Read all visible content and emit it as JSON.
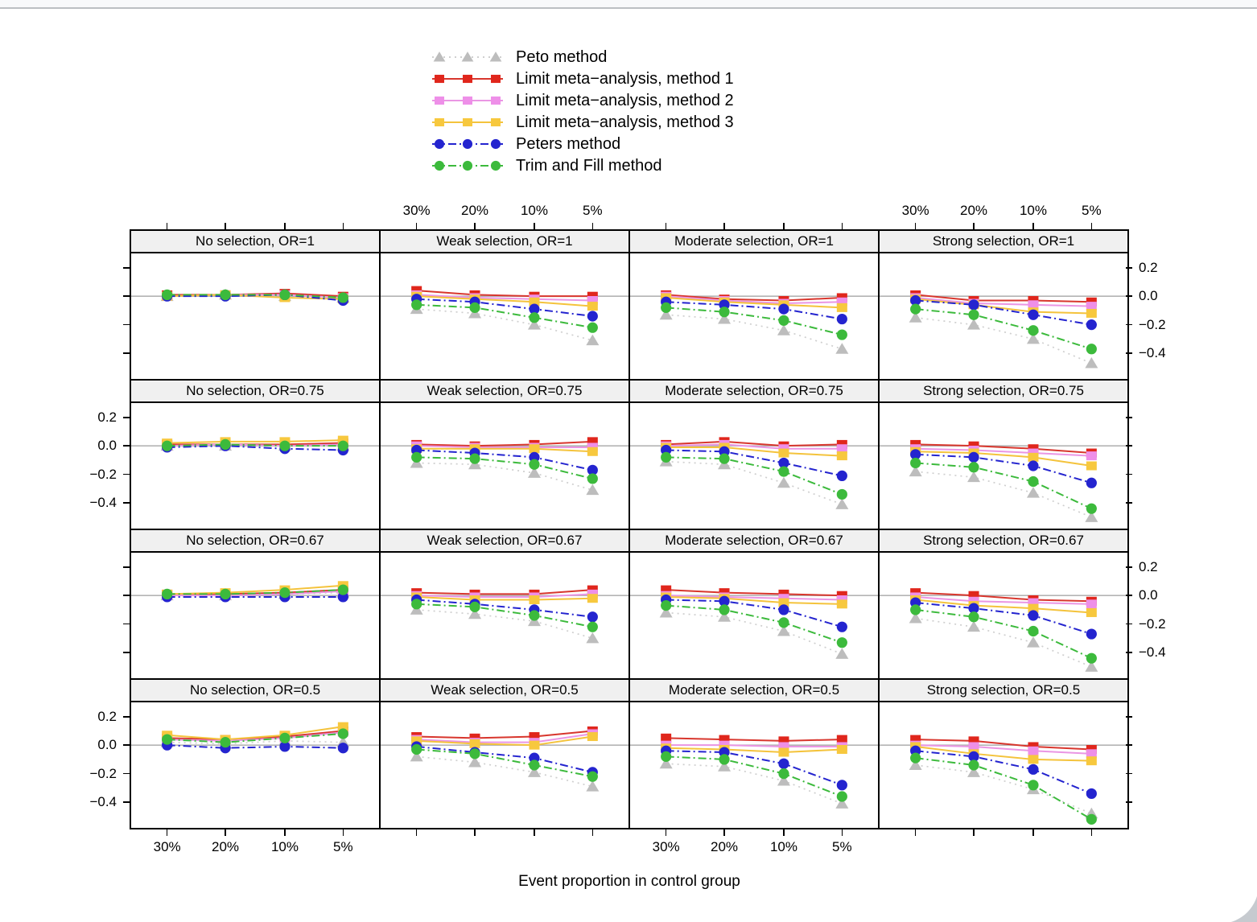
{
  "window": {
    "top_strip_color": "#f8f9fb",
    "top_strip_border": "#bcbfc3",
    "corner_shade": "#c6cacf"
  },
  "legend": {
    "items": [
      {
        "key": "peto",
        "label": "Peto method"
      },
      {
        "key": "limit1",
        "label": "Limit meta−analysis, method 1"
      },
      {
        "key": "limit2",
        "label": "Limit meta−analysis, method 2"
      },
      {
        "key": "limit3",
        "label": "Limit meta−analysis, method 3"
      },
      {
        "key": "peters",
        "label": "Peters method"
      },
      {
        "key": "trimfill",
        "label": "Trim and Fill method"
      }
    ]
  },
  "axes": {
    "xlabel": "Event proportion in control group",
    "x_tick_labels": [
      "30%",
      "20%",
      "10%",
      "5%"
    ],
    "y_tick_labels": [
      "0.2",
      "0.0",
      "−0.2",
      "−0.4"
    ],
    "y_tick_values": [
      0.2,
      0.0,
      -0.2,
      -0.4
    ],
    "top_labeled_columns": [
      1,
      3
    ],
    "bottom_labeled_columns": [
      0,
      2
    ],
    "left_labeled_rows": [
      1,
      3
    ],
    "right_labeled_rows": [
      0,
      2
    ],
    "zero_line_color": "#b4b4b4"
  },
  "chart_data": {
    "type": "line",
    "layout": "4x4-lattice",
    "x_categories": [
      "30%",
      "20%",
      "10%",
      "5%"
    ],
    "col_labels": [
      "No selection",
      "Weak selection",
      "Moderate selection",
      "Strong selection"
    ],
    "row_labels": [
      "OR=1",
      "OR=0.75",
      "OR=0.67",
      "OR=0.5"
    ],
    "ylim": [
      0.3,
      -0.58
    ],
    "series": [
      {
        "key": "peto",
        "name": "Peto method",
        "color": "#bdbdbd",
        "line": "#cfcfcf",
        "marker": "triangle",
        "dash": "dotted"
      },
      {
        "key": "limit1",
        "name": "Limit meta−analysis, method 1",
        "color": "#e0261c",
        "line": "#d8362d",
        "marker": "square",
        "dash": "solid"
      },
      {
        "key": "limit2",
        "name": "Limit meta−analysis, method 2",
        "color": "#ee8fe8",
        "line": "#ea96e4",
        "marker": "square",
        "dash": "solid"
      },
      {
        "key": "limit3",
        "name": "Limit meta−analysis, method 3",
        "color": "#f7c83e",
        "line": "#f4c33c",
        "marker": "square",
        "dash": "solid"
      },
      {
        "key": "peters",
        "name": "Peters method",
        "color": "#2424cf",
        "line": "#2424cf",
        "marker": "circle",
        "dash": "dashdot"
      },
      {
        "key": "trimfill",
        "name": "Trim and Fill method",
        "color": "#3cba3c",
        "line": "#3cba3c",
        "marker": "circle",
        "dash": "dashdot"
      }
    ],
    "panels": [
      {
        "strip": "No selection, OR=1",
        "row": 0,
        "col": 0,
        "values": {
          "peto": [
            0.0,
            0.01,
            0.0,
            -0.01
          ],
          "limit1": [
            0.01,
            0.01,
            0.02,
            0.0
          ],
          "limit2": [
            0.0,
            0.01,
            0.01,
            -0.01
          ],
          "limit3": [
            0.0,
            0.01,
            -0.01,
            -0.02
          ],
          "peters": [
            0.0,
            0.0,
            0.01,
            -0.03
          ],
          "trimfill": [
            0.01,
            0.01,
            0.01,
            -0.01
          ]
        }
      },
      {
        "strip": "Weak selection, OR=1",
        "row": 0,
        "col": 1,
        "values": {
          "peto": [
            -0.09,
            -0.12,
            -0.2,
            -0.31
          ],
          "limit1": [
            0.04,
            0.01,
            0.0,
            0.0
          ],
          "limit2": [
            0.01,
            -0.01,
            -0.02,
            -0.03
          ],
          "limit3": [
            0.0,
            -0.02,
            -0.04,
            -0.07
          ],
          "peters": [
            -0.02,
            -0.04,
            -0.09,
            -0.14
          ],
          "trimfill": [
            -0.06,
            -0.08,
            -0.15,
            -0.22
          ]
        }
      },
      {
        "strip": "Moderate selection, OR=1",
        "row": 0,
        "col": 2,
        "values": {
          "peto": [
            -0.13,
            -0.16,
            -0.24,
            -0.37
          ],
          "limit1": [
            0.01,
            -0.02,
            -0.03,
            -0.01
          ],
          "limit2": [
            0.0,
            -0.03,
            -0.05,
            -0.04
          ],
          "limit3": [
            -0.01,
            -0.04,
            -0.06,
            -0.08
          ],
          "peters": [
            -0.04,
            -0.06,
            -0.09,
            -0.16
          ],
          "trimfill": [
            -0.08,
            -0.11,
            -0.17,
            -0.27
          ]
        }
      },
      {
        "strip": "Strong selection, OR=1",
        "row": 0,
        "col": 3,
        "values": {
          "peto": [
            -0.15,
            -0.2,
            -0.3,
            -0.47
          ],
          "limit1": [
            0.01,
            -0.03,
            -0.03,
            -0.04
          ],
          "limit2": [
            -0.01,
            -0.05,
            -0.06,
            -0.07
          ],
          "limit3": [
            -0.02,
            -0.06,
            -0.11,
            -0.12
          ],
          "peters": [
            -0.03,
            -0.06,
            -0.13,
            -0.2
          ],
          "trimfill": [
            -0.09,
            -0.13,
            -0.24,
            -0.37
          ]
        }
      },
      {
        "strip": "No selection, OR=0.75",
        "row": 1,
        "col": 0,
        "values": {
          "peto": [
            0.0,
            0.0,
            0.0,
            0.0
          ],
          "limit1": [
            0.01,
            0.01,
            0.01,
            0.02
          ],
          "limit2": [
            0.0,
            0.01,
            0.0,
            0.01
          ],
          "limit3": [
            0.02,
            0.03,
            0.03,
            0.04
          ],
          "peters": [
            -0.01,
            0.0,
            -0.02,
            -0.03
          ],
          "trimfill": [
            0.0,
            0.01,
            0.0,
            0.0
          ]
        }
      },
      {
        "strip": "Weak selection, OR=0.75",
        "row": 1,
        "col": 1,
        "values": {
          "peto": [
            -0.12,
            -0.13,
            -0.19,
            -0.31
          ],
          "limit1": [
            0.01,
            0.0,
            0.01,
            0.03
          ],
          "limit2": [
            0.0,
            -0.01,
            -0.01,
            -0.01
          ],
          "limit3": [
            -0.02,
            -0.02,
            -0.02,
            -0.04
          ],
          "peters": [
            -0.03,
            -0.05,
            -0.08,
            -0.17
          ],
          "trimfill": [
            -0.08,
            -0.09,
            -0.13,
            -0.23
          ]
        }
      },
      {
        "strip": "Moderate selection, OR=0.75",
        "row": 1,
        "col": 2,
        "values": {
          "peto": [
            -0.11,
            -0.13,
            -0.26,
            -0.41
          ],
          "limit1": [
            0.01,
            0.03,
            0.0,
            0.01
          ],
          "limit2": [
            0.0,
            0.01,
            -0.02,
            -0.02
          ],
          "limit3": [
            -0.01,
            -0.01,
            -0.05,
            -0.07
          ],
          "peters": [
            -0.03,
            -0.04,
            -0.12,
            -0.21
          ],
          "trimfill": [
            -0.08,
            -0.09,
            -0.18,
            -0.34
          ]
        }
      },
      {
        "strip": "Strong selection, OR=0.75",
        "row": 1,
        "col": 3,
        "values": {
          "peto": [
            -0.18,
            -0.22,
            -0.33,
            -0.5
          ],
          "limit1": [
            0.01,
            0.0,
            -0.02,
            -0.05
          ],
          "limit2": [
            -0.02,
            -0.03,
            -0.05,
            -0.07
          ],
          "limit3": [
            -0.04,
            -0.05,
            -0.08,
            -0.14
          ],
          "peters": [
            -0.06,
            -0.08,
            -0.14,
            -0.26
          ],
          "trimfill": [
            -0.12,
            -0.15,
            -0.25,
            -0.44
          ]
        }
      },
      {
        "strip": "No selection, OR=0.67",
        "row": 2,
        "col": 0,
        "values": {
          "peto": [
            0.0,
            0.0,
            0.01,
            0.02
          ],
          "limit1": [
            0.01,
            0.01,
            0.02,
            0.04
          ],
          "limit2": [
            0.0,
            0.0,
            0.01,
            0.03
          ],
          "limit3": [
            0.01,
            0.02,
            0.04,
            0.07
          ],
          "peters": [
            -0.01,
            -0.01,
            -0.01,
            -0.01
          ],
          "trimfill": [
            0.01,
            0.01,
            0.02,
            0.04
          ]
        }
      },
      {
        "strip": "Weak selection, OR=0.67",
        "row": 2,
        "col": 1,
        "values": {
          "peto": [
            -0.1,
            -0.13,
            -0.18,
            -0.3
          ],
          "limit1": [
            0.02,
            0.01,
            0.01,
            0.04
          ],
          "limit2": [
            0.0,
            -0.01,
            -0.01,
            0.01
          ],
          "limit3": [
            -0.01,
            -0.03,
            -0.03,
            -0.02
          ],
          "peters": [
            -0.03,
            -0.06,
            -0.1,
            -0.15
          ],
          "trimfill": [
            -0.06,
            -0.08,
            -0.14,
            -0.22
          ]
        }
      },
      {
        "strip": "Moderate selection, OR=0.67",
        "row": 2,
        "col": 2,
        "values": {
          "peto": [
            -0.12,
            -0.15,
            -0.25,
            -0.41
          ],
          "limit1": [
            0.04,
            0.02,
            0.01,
            0.0
          ],
          "limit2": [
            0.0,
            -0.01,
            -0.02,
            -0.03
          ],
          "limit3": [
            -0.01,
            -0.02,
            -0.05,
            -0.06
          ],
          "peters": [
            -0.03,
            -0.04,
            -0.1,
            -0.22
          ],
          "trimfill": [
            -0.07,
            -0.1,
            -0.19,
            -0.33
          ]
        }
      },
      {
        "strip": "Strong selection, OR=0.67",
        "row": 2,
        "col": 3,
        "values": {
          "peto": [
            -0.16,
            -0.22,
            -0.33,
            -0.5
          ],
          "limit1": [
            0.02,
            0.0,
            -0.03,
            -0.04
          ],
          "limit2": [
            -0.01,
            -0.04,
            -0.05,
            -0.06
          ],
          "limit3": [
            -0.03,
            -0.07,
            -0.09,
            -0.12
          ],
          "peters": [
            -0.05,
            -0.09,
            -0.14,
            -0.27
          ],
          "trimfill": [
            -0.1,
            -0.15,
            -0.25,
            -0.44
          ]
        }
      },
      {
        "strip": "No selection, OR=0.5",
        "row": 3,
        "col": 0,
        "values": {
          "peto": [
            0.02,
            0.01,
            0.03,
            0.02
          ],
          "limit1": [
            0.05,
            0.04,
            0.06,
            0.1
          ],
          "limit2": [
            0.04,
            0.03,
            0.05,
            0.09
          ],
          "limit3": [
            0.07,
            0.04,
            0.07,
            0.13
          ],
          "peters": [
            0.0,
            -0.02,
            -0.01,
            -0.02
          ],
          "trimfill": [
            0.04,
            0.02,
            0.05,
            0.08
          ]
        }
      },
      {
        "strip": "Weak selection, OR=0.5",
        "row": 3,
        "col": 1,
        "values": {
          "peto": [
            -0.08,
            -0.12,
            -0.19,
            -0.29
          ],
          "limit1": [
            0.06,
            0.05,
            0.06,
            0.1
          ],
          "limit2": [
            0.04,
            0.02,
            0.02,
            0.08
          ],
          "limit3": [
            0.03,
            0.01,
            0.0,
            0.06
          ],
          "peters": [
            -0.01,
            -0.05,
            -0.09,
            -0.19
          ],
          "trimfill": [
            -0.03,
            -0.06,
            -0.14,
            -0.22
          ]
        }
      },
      {
        "strip": "Moderate selection, OR=0.5",
        "row": 3,
        "col": 2,
        "values": {
          "peto": [
            -0.13,
            -0.15,
            -0.25,
            -0.41
          ],
          "limit1": [
            0.05,
            0.04,
            0.03,
            0.04
          ],
          "limit2": [
            0.0,
            0.0,
            -0.01,
            -0.01
          ],
          "limit3": [
            -0.02,
            -0.03,
            -0.05,
            -0.03
          ],
          "peters": [
            -0.04,
            -0.05,
            -0.13,
            -0.28
          ],
          "trimfill": [
            -0.08,
            -0.1,
            -0.2,
            -0.36
          ]
        }
      },
      {
        "strip": "Strong selection, OR=0.5",
        "row": 3,
        "col": 3,
        "values": {
          "peto": [
            -0.14,
            -0.19,
            -0.31,
            -0.48
          ],
          "limit1": [
            0.04,
            0.03,
            -0.01,
            -0.03
          ],
          "limit2": [
            0.0,
            -0.01,
            -0.04,
            -0.06
          ],
          "limit3": [
            -0.01,
            -0.06,
            -0.1,
            -0.11
          ],
          "peters": [
            -0.04,
            -0.08,
            -0.17,
            -0.34
          ],
          "trimfill": [
            -0.09,
            -0.14,
            -0.28,
            -0.52
          ]
        }
      }
    ]
  }
}
